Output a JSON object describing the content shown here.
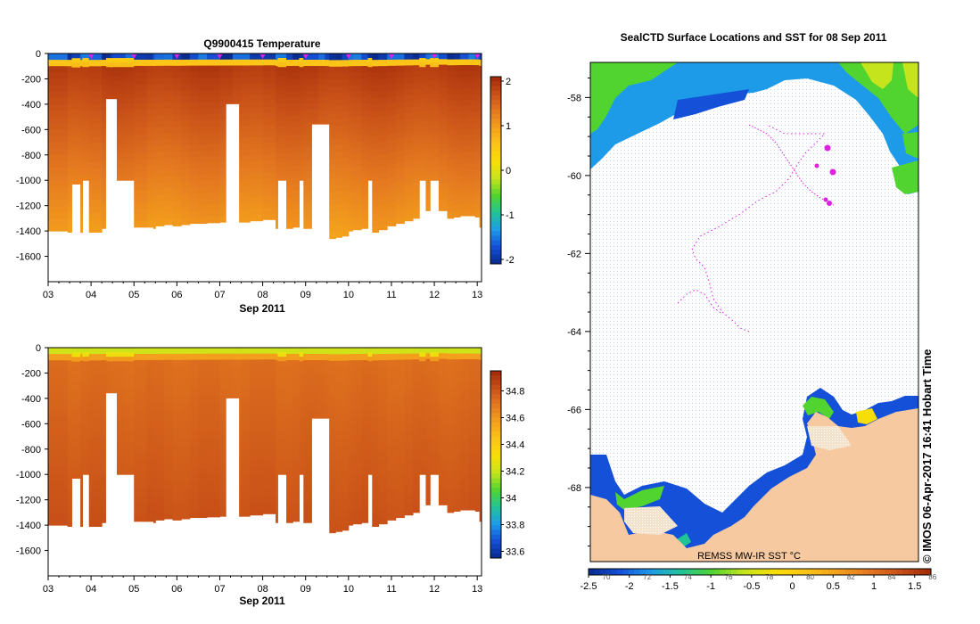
{
  "chart_data": [
    {
      "type": "heatmap",
      "title": "Q9900415  Temperature",
      "xlabel": "Sep 2011",
      "ylabel": "",
      "x_ticks": [
        "03",
        "04",
        "05",
        "06",
        "07",
        "08",
        "09",
        "10",
        "11",
        "12",
        "13"
      ],
      "y_ticks": [
        0,
        -200,
        -400,
        -600,
        -800,
        -1000,
        -1200,
        -1400,
        -1600
      ],
      "ylim": [
        -1800,
        0
      ],
      "xlim": [
        3.0,
        13.1
      ],
      "colorbar_ticks": [
        2,
        1,
        0,
        -1,
        -2
      ],
      "colorbar_range": [
        -2.1,
        2.1
      ],
      "surface_markers_day": [
        4.0,
        5.0,
        6.0,
        7.0,
        8.0,
        9.0,
        10.0,
        11.0,
        12.0,
        13.0
      ],
      "profile_depth_m": [
        [
          3.0,
          1400
        ],
        [
          3.45,
          1410
        ],
        [
          3.55,
          1030
        ],
        [
          3.75,
          1410
        ],
        [
          3.8,
          1000
        ],
        [
          3.95,
          1410
        ],
        [
          4.25,
          1380
        ],
        [
          4.35,
          1000
        ],
        [
          4.45,
          1020
        ],
        [
          4.5,
          1000
        ],
        [
          4.8,
          1000
        ],
        [
          5.0,
          1370
        ],
        [
          5.3,
          1370
        ],
        [
          5.45,
          1380
        ],
        [
          5.5,
          1360
        ],
        [
          5.7,
          1350
        ],
        [
          5.9,
          1360
        ],
        [
          6.1,
          1350
        ],
        [
          6.3,
          1340
        ],
        [
          6.5,
          1340
        ],
        [
          6.7,
          1335
        ],
        [
          7.0,
          1330
        ],
        [
          7.3,
          1330
        ],
        [
          7.5,
          1330
        ],
        [
          7.7,
          1320
        ],
        [
          8.0,
          1310
        ],
        [
          8.3,
          1380
        ],
        [
          8.35,
          1000
        ],
        [
          8.55,
          1380
        ],
        [
          8.7,
          1370
        ],
        [
          8.85,
          1000
        ],
        [
          8.95,
          1380
        ],
        [
          9.0,
          1380
        ],
        [
          9.3,
          1380
        ],
        [
          9.45,
          1390
        ],
        [
          9.55,
          1460
        ],
        [
          9.7,
          1450
        ],
        [
          9.85,
          1440
        ],
        [
          10.0,
          1400
        ],
        [
          10.1,
          1390
        ],
        [
          10.3,
          1380
        ],
        [
          10.45,
          1000
        ],
        [
          10.55,
          1410
        ],
        [
          10.7,
          1390
        ],
        [
          10.9,
          1360
        ],
        [
          11.1,
          1340
        ],
        [
          11.3,
          1320
        ],
        [
          11.5,
          1300
        ],
        [
          11.65,
          1000
        ],
        [
          11.8,
          1240
        ],
        [
          11.9,
          1000
        ],
        [
          12.1,
          1240
        ],
        [
          12.3,
          1300
        ],
        [
          12.45,
          1290
        ],
        [
          12.6,
          1280
        ],
        [
          12.8,
          1280
        ],
        [
          12.95,
          1290
        ],
        [
          13.05,
          1370
        ]
      ],
      "data_gaps": [
        [
          4.35,
          4.6,
          360
        ],
        [
          7.15,
          7.45,
          400
        ],
        [
          9.15,
          9.55,
          560
        ]
      ],
      "colormap": [
        "#082a8c",
        "#1450d8",
        "#1e9be8",
        "#22c496",
        "#52d430",
        "#c6e41c",
        "#f8de08",
        "#fcc418",
        "#f4a01c",
        "#e47820",
        "#c85018",
        "#a02808"
      ]
    },
    {
      "type": "heatmap",
      "title": "",
      "xlabel": "Sep 2011",
      "ylabel": "",
      "x_ticks": [
        "03",
        "04",
        "05",
        "06",
        "07",
        "08",
        "09",
        "10",
        "11",
        "12",
        "13"
      ],
      "y_ticks": [
        0,
        -200,
        -400,
        -600,
        -800,
        -1000,
        -1200,
        -1400,
        -1600
      ],
      "ylim": [
        -1800,
        0
      ],
      "xlim": [
        3.0,
        13.1
      ],
      "colorbar_ticks": [
        34.8,
        34.6,
        34.4,
        34.2,
        34,
        33.8,
        33.6
      ],
      "colorbar_labels": [
        "34.8",
        "34.6",
        "34.4",
        "34.2",
        "34",
        "33.8",
        "33.6"
      ],
      "colorbar_range": [
        33.55,
        34.95
      ],
      "colormap": [
        "#082a8c",
        "#1450d8",
        "#1e9be8",
        "#22c496",
        "#52d430",
        "#c6e41c",
        "#f8de08",
        "#fcc418",
        "#f4a01c",
        "#e47820",
        "#c85018",
        "#a02808"
      ]
    },
    {
      "type": "map",
      "title": "SealCTD Surface Locations and SST for 08 Sep 2011",
      "lat_ticks": [
        -58,
        -60,
        -62,
        -64,
        -66,
        -68
      ],
      "lat_range": [
        -69.9,
        -57.1
      ],
      "colorbar_ticks": [
        -2.5,
        -2,
        -1.5,
        -1,
        -0.5,
        0,
        0.5,
        1,
        1.5
      ],
      "colorbar_labels": [
        "-2.5",
        "-2",
        "-1.5",
        "-1",
        "-0.5",
        "0",
        "0.5",
        "1",
        "1.5"
      ],
      "colorbar_top_labels": [
        "70",
        "72",
        "74",
        "76",
        "78",
        "80",
        "82",
        "84",
        "86"
      ],
      "colorbar_range": [
        -2.5,
        1.7
      ],
      "sst_source": "REMSS MW-IR SST °C",
      "credit": "©  IMOS 06-Apr-2017 16:41 Hobart Time",
      "track_lat": [
        -63.8,
        -63.7,
        -63.5,
        -63.4,
        -63.3,
        -63.2,
        -63.0,
        -62.8,
        -62.6,
        -62.3,
        -62.0,
        -61.7,
        -61.4,
        -61.1,
        -60.8,
        -60.4,
        -60.1,
        -59.8,
        -59.5,
        -59.2,
        -59.0,
        -58.8
      ],
      "seal_positions_lat": [
        -59.3,
        -59.9,
        -60.0,
        -60.7,
        -60.8
      ]
    }
  ]
}
